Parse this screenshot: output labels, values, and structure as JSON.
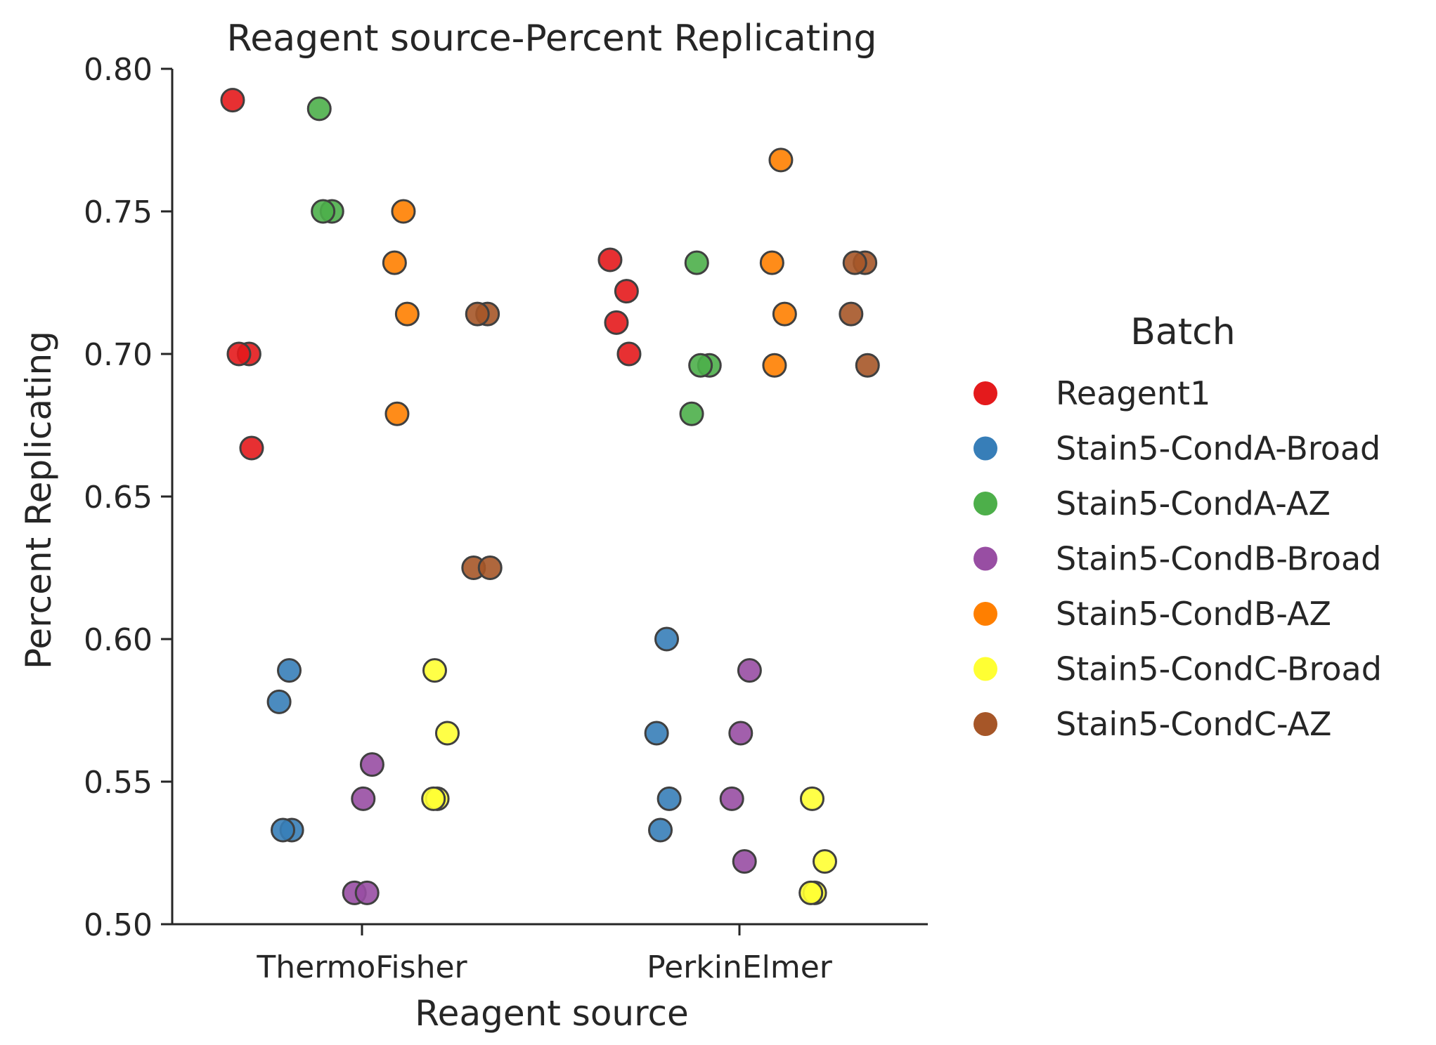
{
  "chart_data": {
    "type": "scatter",
    "title": "Reagent source-Percent Replicating",
    "xlabel": "Reagent source",
    "ylabel": "Percent Replicating",
    "categories": [
      "ThermoFisher",
      "PerkinElmer"
    ],
    "ylim": [
      0.5,
      0.8
    ],
    "yticks": [
      "0.50",
      "0.55",
      "0.60",
      "0.65",
      "0.70",
      "0.75",
      "0.80"
    ],
    "grid": false,
    "legend": {
      "title": "Batch",
      "placement": "right"
    },
    "series": [
      {
        "name": "Reagent1",
        "color": "#e41a1c",
        "points": [
          {
            "category": "ThermoFisher",
            "y": 0.789
          },
          {
            "category": "ThermoFisher",
            "y": 0.7
          },
          {
            "category": "ThermoFisher",
            "y": 0.7
          },
          {
            "category": "ThermoFisher",
            "y": 0.667
          },
          {
            "category": "PerkinElmer",
            "y": 0.733
          },
          {
            "category": "PerkinElmer",
            "y": 0.722
          },
          {
            "category": "PerkinElmer",
            "y": 0.711
          },
          {
            "category": "PerkinElmer",
            "y": 0.7
          }
        ]
      },
      {
        "name": "Stain5-CondA-Broad",
        "color": "#377eb8",
        "points": [
          {
            "category": "ThermoFisher",
            "y": 0.589
          },
          {
            "category": "ThermoFisher",
            "y": 0.578
          },
          {
            "category": "ThermoFisher",
            "y": 0.533
          },
          {
            "category": "ThermoFisher",
            "y": 0.533
          },
          {
            "category": "PerkinElmer",
            "y": 0.6
          },
          {
            "category": "PerkinElmer",
            "y": 0.567
          },
          {
            "category": "PerkinElmer",
            "y": 0.544
          },
          {
            "category": "PerkinElmer",
            "y": 0.533
          }
        ]
      },
      {
        "name": "Stain5-CondA-AZ",
        "color": "#4daf4a",
        "points": [
          {
            "category": "ThermoFisher",
            "y": 0.786
          },
          {
            "category": "ThermoFisher",
            "y": 0.75
          },
          {
            "category": "ThermoFisher",
            "y": 0.75
          },
          {
            "category": "PerkinElmer",
            "y": 0.732
          },
          {
            "category": "PerkinElmer",
            "y": 0.696
          },
          {
            "category": "PerkinElmer",
            "y": 0.696
          },
          {
            "category": "PerkinElmer",
            "y": 0.679
          }
        ]
      },
      {
        "name": "Stain5-CondB-Broad",
        "color": "#984ea3",
        "points": [
          {
            "category": "ThermoFisher",
            "y": 0.556
          },
          {
            "category": "ThermoFisher",
            "y": 0.544
          },
          {
            "category": "ThermoFisher",
            "y": 0.511
          },
          {
            "category": "ThermoFisher",
            "y": 0.511
          },
          {
            "category": "PerkinElmer",
            "y": 0.589
          },
          {
            "category": "PerkinElmer",
            "y": 0.567
          },
          {
            "category": "PerkinElmer",
            "y": 0.544
          },
          {
            "category": "PerkinElmer",
            "y": 0.522
          }
        ]
      },
      {
        "name": "Stain5-CondB-AZ",
        "color": "#ff7f00",
        "points": [
          {
            "category": "ThermoFisher",
            "y": 0.75
          },
          {
            "category": "ThermoFisher",
            "y": 0.732
          },
          {
            "category": "ThermoFisher",
            "y": 0.714
          },
          {
            "category": "ThermoFisher",
            "y": 0.679
          },
          {
            "category": "PerkinElmer",
            "y": 0.768
          },
          {
            "category": "PerkinElmer",
            "y": 0.732
          },
          {
            "category": "PerkinElmer",
            "y": 0.714
          },
          {
            "category": "PerkinElmer",
            "y": 0.696
          }
        ]
      },
      {
        "name": "Stain5-CondC-Broad",
        "color": "#ffff33",
        "points": [
          {
            "category": "ThermoFisher",
            "y": 0.589
          },
          {
            "category": "ThermoFisher",
            "y": 0.567
          },
          {
            "category": "ThermoFisher",
            "y": 0.544
          },
          {
            "category": "ThermoFisher",
            "y": 0.544
          },
          {
            "category": "PerkinElmer",
            "y": 0.544
          },
          {
            "category": "PerkinElmer",
            "y": 0.522
          },
          {
            "category": "PerkinElmer",
            "y": 0.511
          },
          {
            "category": "PerkinElmer",
            "y": 0.511
          }
        ]
      },
      {
        "name": "Stain5-CondC-AZ",
        "color": "#a65628",
        "points": [
          {
            "category": "ThermoFisher",
            "y": 0.714
          },
          {
            "category": "ThermoFisher",
            "y": 0.714
          },
          {
            "category": "ThermoFisher",
            "y": 0.625
          },
          {
            "category": "ThermoFisher",
            "y": 0.625
          },
          {
            "category": "PerkinElmer",
            "y": 0.732
          },
          {
            "category": "PerkinElmer",
            "y": 0.732
          },
          {
            "category": "PerkinElmer",
            "y": 0.714
          },
          {
            "category": "PerkinElmer",
            "y": 0.696
          }
        ]
      }
    ]
  }
}
